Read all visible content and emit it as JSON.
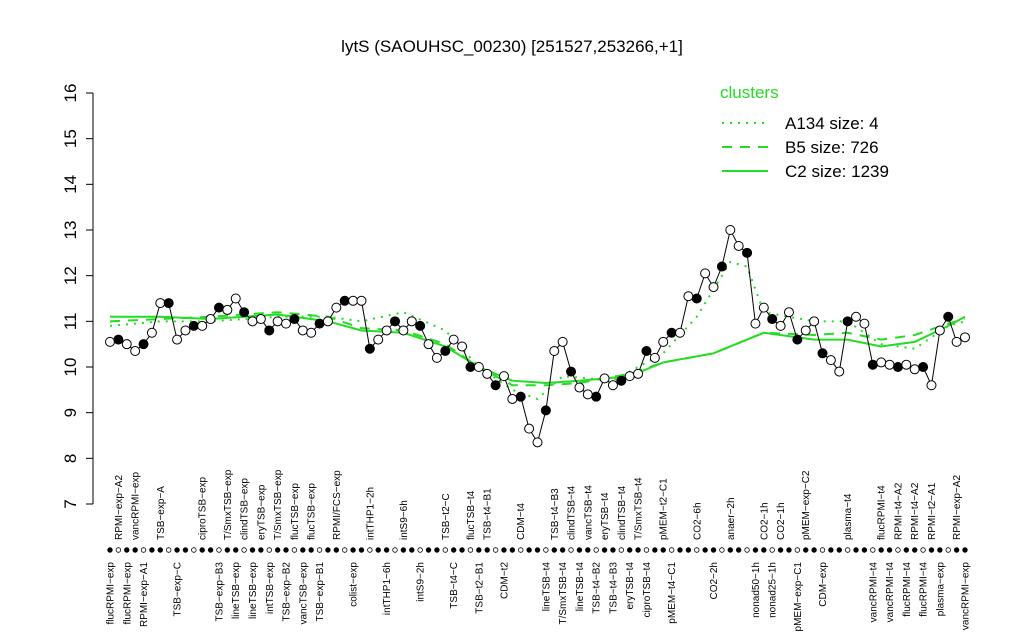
{
  "chart_data": {
    "type": "line",
    "title": "lytS (SAOUHSC_00230) [251527,253266,+1]",
    "categories": [
      "flucRPMI−exp",
      "RPMI−exp−A2",
      "flucRPMI−exp",
      "vancRPMI−exp",
      "RPMI−exp−A1",
      null,
      "TSB−exp−A",
      null,
      "TSB−exp−C",
      null,
      null,
      "ciproTSB−exp",
      null,
      "TSB−exp−B3",
      "T/SmxTSB−exp",
      "lineTSB−exp",
      "clindTSB−exp",
      "lineTSB−exp",
      "eryTSB−exp",
      "intTSB−exp",
      "T/SmxTSB−exp",
      "TSB−exp−B2",
      "flucTSB−exp",
      "vancTSB−exp",
      "flucTSB−exp",
      "TSB−exp−B1",
      null,
      "RPMI/FCS−exp",
      null,
      "colist−exp",
      null,
      "intTHP1−2h",
      null,
      "intTHP1−6h",
      null,
      "intS9−6h",
      null,
      "intS9−2h",
      null,
      null,
      "TSB−t2−C",
      "TSB−t4−C",
      null,
      "flucTSB−t4",
      "TSB−t2−B1",
      "TSB−t4−B1",
      null,
      "CDM−t2",
      null,
      "CDM−t4",
      null,
      null,
      "lineTSB−t4",
      "TSB−t4−B3",
      "T/SmxTSB−t4",
      "clindTSB−t4",
      "lineTSB−t4",
      "vancTSB−t4",
      "TSB−t4−B2",
      "eryTSB−t4",
      "TSB−t4−B3",
      "clindTSB−t4",
      "eryTSB−t4",
      "T/SmxTSB−t4",
      "ciproTSB−t4",
      null,
      "pMEM−t2−C1",
      "pMEM−t4−C1",
      null,
      null,
      "CO2−6h",
      null,
      "CO2−2h",
      null,
      "anaer−2h",
      null,
      null,
      "nonad50−1h",
      "CO2−1h",
      "nonad25−1h",
      "CO2−1h",
      null,
      "pMEM−exp−C1",
      "pMEM−exp−C2",
      null,
      "CDM−exp",
      null,
      null,
      "plasma−t4",
      null,
      null,
      "vancRPMI−t4",
      "flucRPMI−t4",
      "vancRPMI−t4",
      "RPMI−t4−A2",
      "flucRPMI−t4",
      "RPMI−t4−A2",
      "flucRPMI−t4",
      "RPMI−t2−A1",
      "plasma−exp",
      null,
      "RPMI−exp−A2",
      "vancRPMI−exp"
    ],
    "values": [
      10.55,
      10.6,
      10.5,
      10.35,
      10.5,
      10.75,
      11.4,
      11.4,
      10.6,
      10.8,
      10.9,
      10.9,
      11.05,
      11.3,
      11.25,
      11.5,
      11.2,
      11.0,
      11.05,
      10.8,
      11.0,
      10.95,
      11.05,
      10.8,
      10.75,
      10.95,
      11.0,
      11.3,
      11.45,
      11.45,
      11.45,
      10.4,
      10.6,
      10.8,
      11.0,
      10.8,
      11.0,
      10.9,
      10.5,
      10.2,
      10.35,
      10.6,
      10.45,
      10.0,
      10.0,
      9.85,
      9.6,
      9.8,
      9.3,
      9.35,
      8.65,
      8.35,
      9.05,
      10.35,
      10.55,
      9.9,
      9.55,
      9.4,
      9.35,
      9.75,
      9.6,
      9.7,
      9.8,
      9.85,
      10.35,
      10.2,
      10.55,
      10.75,
      10.75,
      11.55,
      11.5,
      12.05,
      11.75,
      12.2,
      13.0,
      12.65,
      12.5,
      10.95,
      11.3,
      11.05,
      10.9,
      11.2,
      10.6,
      10.8,
      11.0,
      10.3,
      10.15,
      9.9,
      11.0,
      11.1,
      10.95,
      10.05,
      10.1,
      10.05,
      10.0,
      10.05,
      9.95,
      10.0,
      9.6,
      10.8,
      11.1,
      10.55,
      10.65
    ],
    "ylim": [
      7,
      16
    ],
    "yticks": [
      7,
      8,
      9,
      10,
      11,
      12,
      13,
      14,
      15,
      16
    ],
    "legend_title": "clusters",
    "series": [
      {
        "name": "A134 size: 4",
        "color": "#22dd22",
        "dash": "dotted",
        "x": [
          0,
          6,
          12,
          20,
          26,
          30,
          35,
          40,
          44,
          48,
          51,
          54,
          60,
          66,
          70,
          74,
          76,
          78,
          84,
          88,
          92,
          96,
          100,
          102
        ],
        "values": [
          10.9,
          11.0,
          11.0,
          11.1,
          11.1,
          11.0,
          11.2,
          10.8,
          10.0,
          9.5,
          9.3,
          9.8,
          9.7,
          10.3,
          11.1,
          12.3,
          12.2,
          11.2,
          11.0,
          11.0,
          10.5,
          10.4,
          10.9,
          11.0
        ]
      },
      {
        "name": "B5 size: 726",
        "color": "#22dd22",
        "dash": "dashed",
        "x": [
          0,
          6,
          12,
          20,
          26,
          30,
          35,
          40,
          44,
          48,
          52,
          56,
          62,
          66,
          72,
          76,
          78,
          84,
          88,
          92,
          96,
          100,
          102
        ],
        "values": [
          11.0,
          11.05,
          11.1,
          11.2,
          11.1,
          10.85,
          10.8,
          10.5,
          10.0,
          9.6,
          9.6,
          9.65,
          9.85,
          10.1,
          10.3,
          10.6,
          10.75,
          10.7,
          10.75,
          10.6,
          10.7,
          10.95,
          11.05
        ]
      },
      {
        "name": "C2 size: 1239",
        "color": "#22dd22",
        "dash": "solid",
        "x": [
          0,
          6,
          12,
          20,
          26,
          30,
          35,
          40,
          44,
          48,
          52,
          56,
          62,
          66,
          72,
          76,
          78,
          84,
          88,
          92,
          96,
          100,
          102
        ],
        "values": [
          11.1,
          11.1,
          11.05,
          11.15,
          11.0,
          10.8,
          10.75,
          10.45,
          10.0,
          9.7,
          9.65,
          9.7,
          9.8,
          10.1,
          10.3,
          10.6,
          10.75,
          10.6,
          10.6,
          10.45,
          10.55,
          10.9,
          11.1
        ]
      }
    ]
  }
}
